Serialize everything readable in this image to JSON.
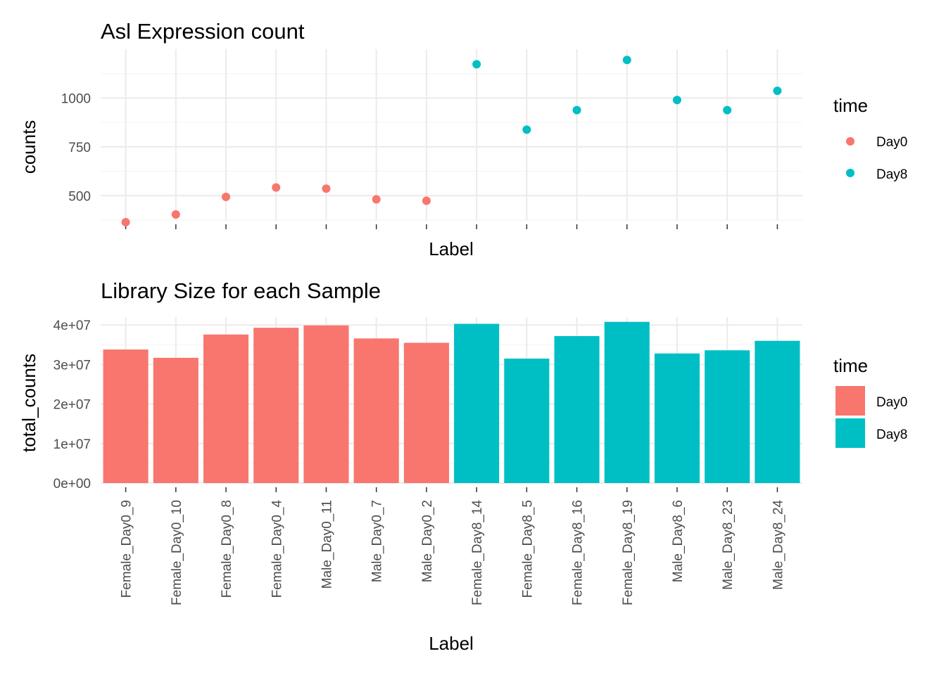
{
  "colors": {
    "Day0": "#F8766D",
    "Day8": "#00BFC4"
  },
  "chart_data": [
    {
      "type": "scatter",
      "title": "Asl Expression count",
      "xlabel": "Label",
      "ylabel": "counts",
      "categories": [
        "Female_Day0_9",
        "Female_Day0_10",
        "Female_Day0_8",
        "Female_Day0_4",
        "Male_Day0_11",
        "Male_Day0_7",
        "Male_Day0_2",
        "Female_Day8_14",
        "Female_Day8_5",
        "Female_Day8_16",
        "Female_Day8_19",
        "Male_Day8_6",
        "Male_Day8_23",
        "Male_Day8_24"
      ],
      "groups": [
        "Day0",
        "Day0",
        "Day0",
        "Day0",
        "Day0",
        "Day0",
        "Day0",
        "Day8",
        "Day8",
        "Day8",
        "Day8",
        "Day8",
        "Day8",
        "Day8"
      ],
      "values": [
        364,
        404,
        494,
        542,
        536,
        481,
        474,
        1173,
        838,
        938,
        1195,
        990,
        938,
        1037
      ],
      "ylim": [
        375,
        1250
      ],
      "yticks": [
        500,
        750,
        1000
      ],
      "ytick_labels": [
        "500",
        "750",
        "1000"
      ],
      "x_tick_labels_shown": false,
      "grid": true,
      "legend": {
        "title": "time",
        "entries": [
          "Day0",
          "Day8"
        ],
        "position": "right"
      }
    },
    {
      "type": "bar",
      "title": "Library Size for each Sample",
      "xlabel": "Label",
      "ylabel": "total_counts",
      "categories": [
        "Female_Day0_9",
        "Female_Day0_10",
        "Female_Day0_8",
        "Female_Day0_4",
        "Male_Day0_11",
        "Male_Day0_7",
        "Male_Day0_2",
        "Female_Day8_14",
        "Female_Day8_5",
        "Female_Day8_16",
        "Female_Day8_19",
        "Male_Day8_6",
        "Male_Day8_23",
        "Male_Day8_24"
      ],
      "groups": [
        "Day0",
        "Day0",
        "Day0",
        "Day0",
        "Day0",
        "Day0",
        "Day0",
        "Day8",
        "Day8",
        "Day8",
        "Day8",
        "Day8",
        "Day8",
        "Day8"
      ],
      "values": [
        33800000,
        31700000,
        37600000,
        39300000,
        39900000,
        36600000,
        35500000,
        40300000,
        31500000,
        37200000,
        40800000,
        32800000,
        33600000,
        36000000
      ],
      "ylim": [
        0,
        40000000
      ],
      "yticks": [
        0,
        10000000,
        20000000,
        30000000,
        40000000
      ],
      "ytick_labels": [
        "0e+00",
        "1e+07",
        "2e+07",
        "3e+07",
        "4e+07"
      ],
      "x_tick_labels_shown": true,
      "grid": true,
      "legend": {
        "title": "time",
        "entries": [
          "Day0",
          "Day8"
        ],
        "position": "right"
      }
    }
  ]
}
